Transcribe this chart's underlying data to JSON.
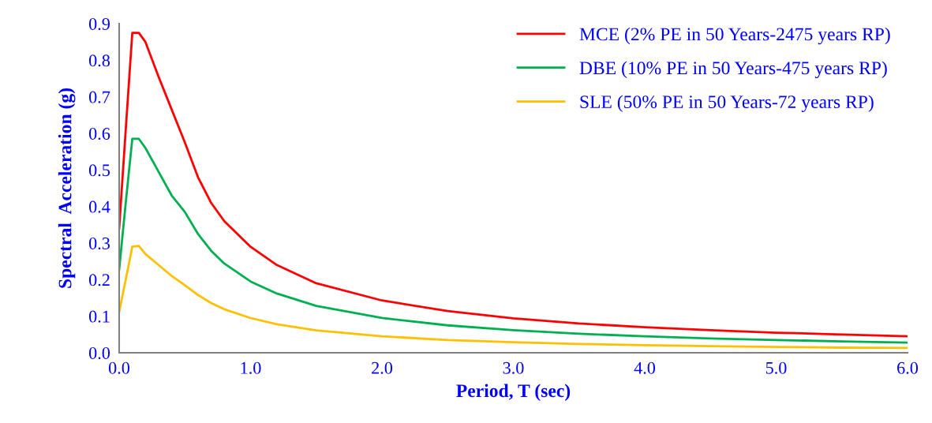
{
  "chart_data": {
    "type": "line",
    "xlabel": "Period, T (sec)",
    "ylabel": "Spectral  Acceleration (g)",
    "x": [
      0,
      0.05,
      0.1,
      0.15,
      0.2,
      0.3,
      0.4,
      0.5,
      0.6,
      0.7,
      0.8,
      1.0,
      1.2,
      1.5,
      2.0,
      2.5,
      3.0,
      3.5,
      4.0,
      4.5,
      5.0,
      5.5,
      6.0
    ],
    "series": [
      {
        "name": "MCE (2% PE in 50 Years-2475 years RP)",
        "color": "#ff0000",
        "values": [
          0.34,
          0.61,
          0.875,
          0.875,
          0.85,
          0.755,
          0.665,
          0.575,
          0.48,
          0.41,
          0.36,
          0.29,
          0.24,
          0.19,
          0.143,
          0.114,
          0.094,
          0.08,
          0.07,
          0.062,
          0.055,
          0.05,
          0.045
        ]
      },
      {
        "name": "DBE (10% PE in 50 Years-475 years RP)",
        "color": "#00b050",
        "values": [
          0.227,
          0.41,
          0.585,
          0.585,
          0.56,
          0.495,
          0.43,
          0.385,
          0.325,
          0.279,
          0.244,
          0.195,
          0.162,
          0.128,
          0.095,
          0.075,
          0.062,
          0.052,
          0.045,
          0.039,
          0.035,
          0.031,
          0.028
        ]
      },
      {
        "name": "SLE (50% PE in 50 Years-72 years RP)",
        "color": "#ffc000",
        "values": [
          0.112,
          0.2,
          0.29,
          0.292,
          0.27,
          0.24,
          0.21,
          0.185,
          0.158,
          0.136,
          0.119,
          0.095,
          0.078,
          0.061,
          0.045,
          0.035,
          0.029,
          0.024,
          0.021,
          0.018,
          0.016,
          0.014,
          0.013
        ]
      }
    ],
    "xlim": [
      0,
      6
    ],
    "ylim": [
      0,
      0.9
    ],
    "xticks": [
      {
        "value": 0,
        "label": "0.0"
      },
      {
        "value": 1,
        "label": "1.0"
      },
      {
        "value": 2,
        "label": "2.0"
      },
      {
        "value": 3,
        "label": "3.0"
      },
      {
        "value": 4,
        "label": "4.0"
      },
      {
        "value": 5,
        "label": "5.0"
      },
      {
        "value": 6,
        "label": "6.0"
      }
    ],
    "yticks": [
      {
        "value": 0,
        "label": "0.0"
      },
      0.1,
      0.2,
      0.3,
      0.4,
      0.5,
      0.6,
      0.7,
      0.8,
      0.9
    ],
    "legend": "top right",
    "grid": false,
    "marker": "none",
    "line_style": "solid"
  }
}
